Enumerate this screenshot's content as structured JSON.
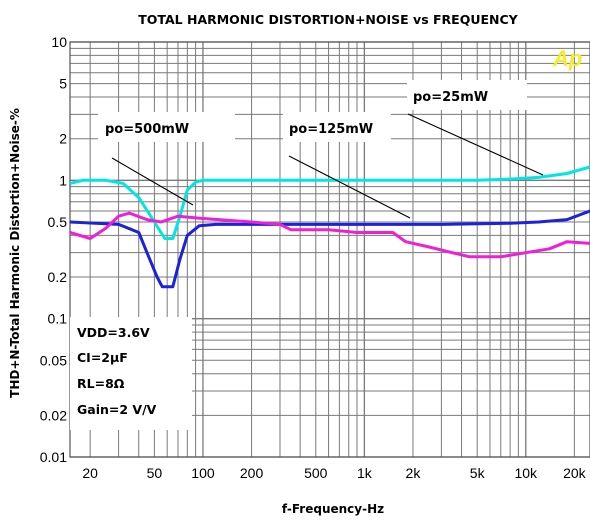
{
  "chart_data": {
    "type": "line",
    "title": "TOTAL HARMONIC DISTORTION+NOISE vs FREQUENCY",
    "xlabel": "f-Frequency-Hz",
    "ylabel": "THD+N-Total Harmonic Distortion+Noise-%",
    "x_scale": "log",
    "y_scale": "log",
    "xlim": [
      15,
      25000
    ],
    "ylim": [
      0.01,
      10
    ],
    "grid": true,
    "x_ticks": [
      {
        "value": 20,
        "label": "20"
      },
      {
        "value": 50,
        "label": "50"
      },
      {
        "value": 100,
        "label": "100"
      },
      {
        "value": 200,
        "label": "200"
      },
      {
        "value": 500,
        "label": "500"
      },
      {
        "value": 1000,
        "label": "1k"
      },
      {
        "value": 2000,
        "label": "2k"
      },
      {
        "value": 5000,
        "label": "5k"
      },
      {
        "value": 10000,
        "label": "10k"
      },
      {
        "value": 20000,
        "label": "20k"
      }
    ],
    "y_ticks": [
      {
        "value": 10,
        "label": "10"
      },
      {
        "value": 5,
        "label": "5"
      },
      {
        "value": 2,
        "label": "2"
      },
      {
        "value": 1,
        "label": "1"
      },
      {
        "value": 0.5,
        "label": "0.5"
      },
      {
        "value": 0.2,
        "label": "0.2"
      },
      {
        "value": 0.1,
        "label": "0.1"
      },
      {
        "value": 0.05,
        "label": "0.05"
      },
      {
        "value": 0.02,
        "label": "0.02"
      },
      {
        "value": 0.01,
        "label": "0.01"
      }
    ],
    "series": [
      {
        "color": "#00e5e5",
        "points": [
          [
            15,
            0.95
          ],
          [
            18,
            1.0
          ],
          [
            25,
            1.0
          ],
          [
            32,
            0.95
          ],
          [
            40,
            0.75
          ],
          [
            50,
            0.5
          ],
          [
            58,
            0.38
          ],
          [
            65,
            0.38
          ],
          [
            72,
            0.55
          ],
          [
            80,
            0.85
          ],
          [
            90,
            0.97
          ],
          [
            100,
            1.0
          ],
          [
            200,
            1.0
          ],
          [
            500,
            1.0
          ],
          [
            1000,
            1.0
          ],
          [
            2000,
            1.0
          ],
          [
            5000,
            1.0
          ],
          [
            8000,
            1.02
          ],
          [
            12000,
            1.05
          ],
          [
            18000,
            1.12
          ],
          [
            25000,
            1.25
          ]
        ]
      },
      {
        "color": "#1c22d8",
        "points": [
          [
            15,
            0.5
          ],
          [
            30,
            0.48
          ],
          [
            40,
            0.42
          ],
          [
            45,
            0.3
          ],
          [
            52,
            0.2
          ],
          [
            56,
            0.17
          ],
          [
            65,
            0.17
          ],
          [
            72,
            0.27
          ],
          [
            80,
            0.4
          ],
          [
            95,
            0.47
          ],
          [
            120,
            0.48
          ],
          [
            200,
            0.48
          ],
          [
            500,
            0.48
          ],
          [
            1000,
            0.48
          ],
          [
            3000,
            0.48
          ],
          [
            8000,
            0.49
          ],
          [
            12000,
            0.5
          ],
          [
            18000,
            0.52
          ],
          [
            25000,
            0.6
          ]
        ]
      },
      {
        "color": "#ee1fd5",
        "points": [
          [
            15,
            0.42
          ],
          [
            20,
            0.38
          ],
          [
            25,
            0.45
          ],
          [
            30,
            0.55
          ],
          [
            35,
            0.58
          ],
          [
            45,
            0.52
          ],
          [
            55,
            0.5
          ],
          [
            70,
            0.55
          ],
          [
            100,
            0.53
          ],
          [
            200,
            0.5
          ],
          [
            300,
            0.48
          ],
          [
            350,
            0.44
          ],
          [
            600,
            0.44
          ],
          [
            900,
            0.42
          ],
          [
            1500,
            0.42
          ],
          [
            1800,
            0.36
          ],
          [
            2500,
            0.33
          ],
          [
            3500,
            0.3
          ],
          [
            4500,
            0.28
          ],
          [
            7000,
            0.28
          ],
          [
            10000,
            0.3
          ],
          [
            14000,
            0.32
          ],
          [
            18000,
            0.36
          ],
          [
            25000,
            0.35
          ]
        ]
      }
    ],
    "annotations": [
      "po=500mW",
      "po=125mW",
      "po=25mW"
    ],
    "conditions": [
      "VDD=3.6V",
      "CI=2μF",
      "RL=8Ω",
      "Gain=2 V/V"
    ],
    "logo": "Ap"
  }
}
